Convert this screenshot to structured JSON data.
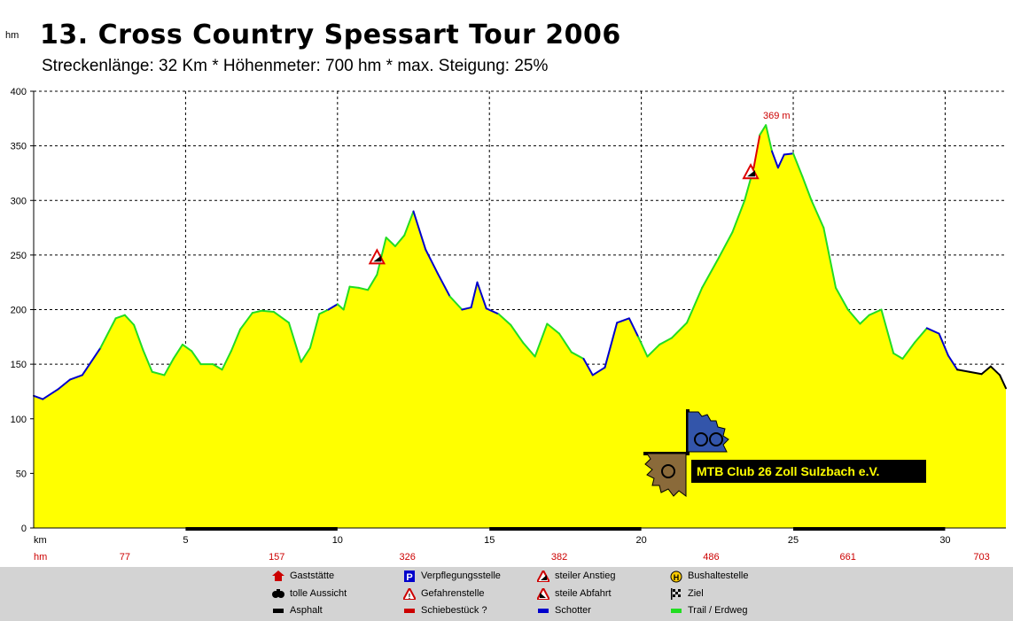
{
  "title": "13. Cross Country Spessart Tour 2006",
  "subtitle": "Streckenlänge: 32 Km  *  Höhenmeter: 700 hm  *  max. Steigung: 25%",
  "unit_label": "hm",
  "peak_label": "369 m",
  "logo_text": "MTB Club 26 Zoll Sulzbach e.V.",
  "colors": {
    "fill": "#ffff00",
    "trail": "#22dd22",
    "schotter": "#0000cc",
    "asphalt": "#000000",
    "schiebe": "#dd0000"
  },
  "chart_data": {
    "type": "area",
    "title": "13. Cross Country Spessart Tour 2006",
    "xlabel": "km",
    "ylabel": "hm",
    "xlim": [
      0,
      32
    ],
    "ylim": [
      0,
      400
    ],
    "y_ticks": [
      0,
      50,
      100,
      150,
      200,
      250,
      300,
      350,
      400
    ],
    "x_ticks": [
      5,
      10,
      15,
      20,
      25,
      30
    ],
    "grid": true,
    "cumulative_hm": [
      {
        "km": 3,
        "label": "77"
      },
      {
        "km": 8,
        "label": "157"
      },
      {
        "km": 12.3,
        "label": "326"
      },
      {
        "km": 17.3,
        "label": "382"
      },
      {
        "km": 22.3,
        "label": "486"
      },
      {
        "km": 26.8,
        "label": "661"
      },
      {
        "km": 31.2,
        "label": "703"
      }
    ],
    "x": [
      0,
      0.3,
      0.8,
      1.2,
      1.6,
      2.2,
      2.7,
      3.0,
      3.3,
      3.6,
      3.9,
      4.3,
      4.6,
      4.9,
      5.2,
      5.5,
      5.9,
      6.2,
      6.5,
      6.8,
      7.2,
      7.5,
      7.9,
      8.4,
      8.8,
      9.1,
      9.4,
      9.7,
      10.0,
      10.2,
      10.4,
      10.7,
      11.0,
      11.3,
      11.6,
      11.9,
      12.2,
      12.5,
      12.9,
      13.3,
      13.7,
      14.1,
      14.4,
      14.6,
      14.9,
      15.3,
      15.7,
      16.1,
      16.5,
      16.9,
      17.3,
      17.7,
      18.1,
      18.4,
      18.8,
      19.2,
      19.6,
      19.9,
      20.2,
      20.6,
      21.0,
      21.5,
      22.0,
      22.5,
      23.0,
      23.4,
      23.7,
      23.9,
      24.1,
      24.3,
      24.5,
      24.7,
      25.0,
      25.3,
      25.6,
      26.0,
      26.4,
      26.8,
      27.2,
      27.5,
      27.9,
      28.3,
      28.6,
      29.0,
      29.4,
      29.8,
      30.1,
      30.4,
      30.8,
      31.2,
      31.5,
      31.8,
      32.0
    ],
    "values": [
      121,
      118,
      127,
      136,
      140,
      165,
      192,
      195,
      186,
      163,
      143,
      140,
      155,
      168,
      162,
      150,
      150,
      145,
      162,
      182,
      197,
      199,
      198,
      188,
      152,
      165,
      196,
      200,
      205,
      200,
      221,
      220,
      218,
      232,
      266,
      258,
      268,
      290,
      255,
      233,
      212,
      200,
      202,
      225,
      201,
      196,
      186,
      170,
      157,
      187,
      178,
      161,
      155,
      140,
      147,
      188,
      192,
      175,
      157,
      168,
      174,
      188,
      220,
      245,
      271,
      300,
      330,
      360,
      369,
      345,
      330,
      342,
      343,
      322,
      300,
      275,
      220,
      200,
      187,
      195,
      200,
      160,
      155,
      170,
      183,
      178,
      158,
      145,
      143,
      141,
      148,
      140,
      128
    ],
    "markers": [
      {
        "type": "steiler Anstieg",
        "km": 11.3,
        "alt": 248
      },
      {
        "type": "steiler Anstieg",
        "km": 23.6,
        "alt": 326
      }
    ]
  },
  "legend": [
    {
      "icon": "gaststaette-icon",
      "label": "Gaststätte"
    },
    {
      "icon": "verpflegung-icon",
      "label": "Verpflegungsstelle"
    },
    {
      "icon": "steiler-anstieg-icon",
      "label": "steiler Anstieg"
    },
    {
      "icon": "bushaltestelle-icon",
      "label": "Bushaltestelle"
    },
    {
      "icon": "aussicht-icon",
      "label": "tolle Aussicht"
    },
    {
      "icon": "gefahrenstelle-icon",
      "label": "Gefahrenstelle"
    },
    {
      "icon": "steile-abfahrt-icon",
      "label": "steile Abfahrt"
    },
    {
      "icon": "ziel-icon",
      "label": "Ziel"
    },
    {
      "icon": "asphalt-icon",
      "label": "Asphalt"
    },
    {
      "icon": "schiebestueck-icon",
      "label": "Schiebestück ?"
    },
    {
      "icon": "schotter-icon",
      "label": "Schotter"
    },
    {
      "icon": "trail-icon",
      "label": "Trail / Erdweg"
    }
  ]
}
